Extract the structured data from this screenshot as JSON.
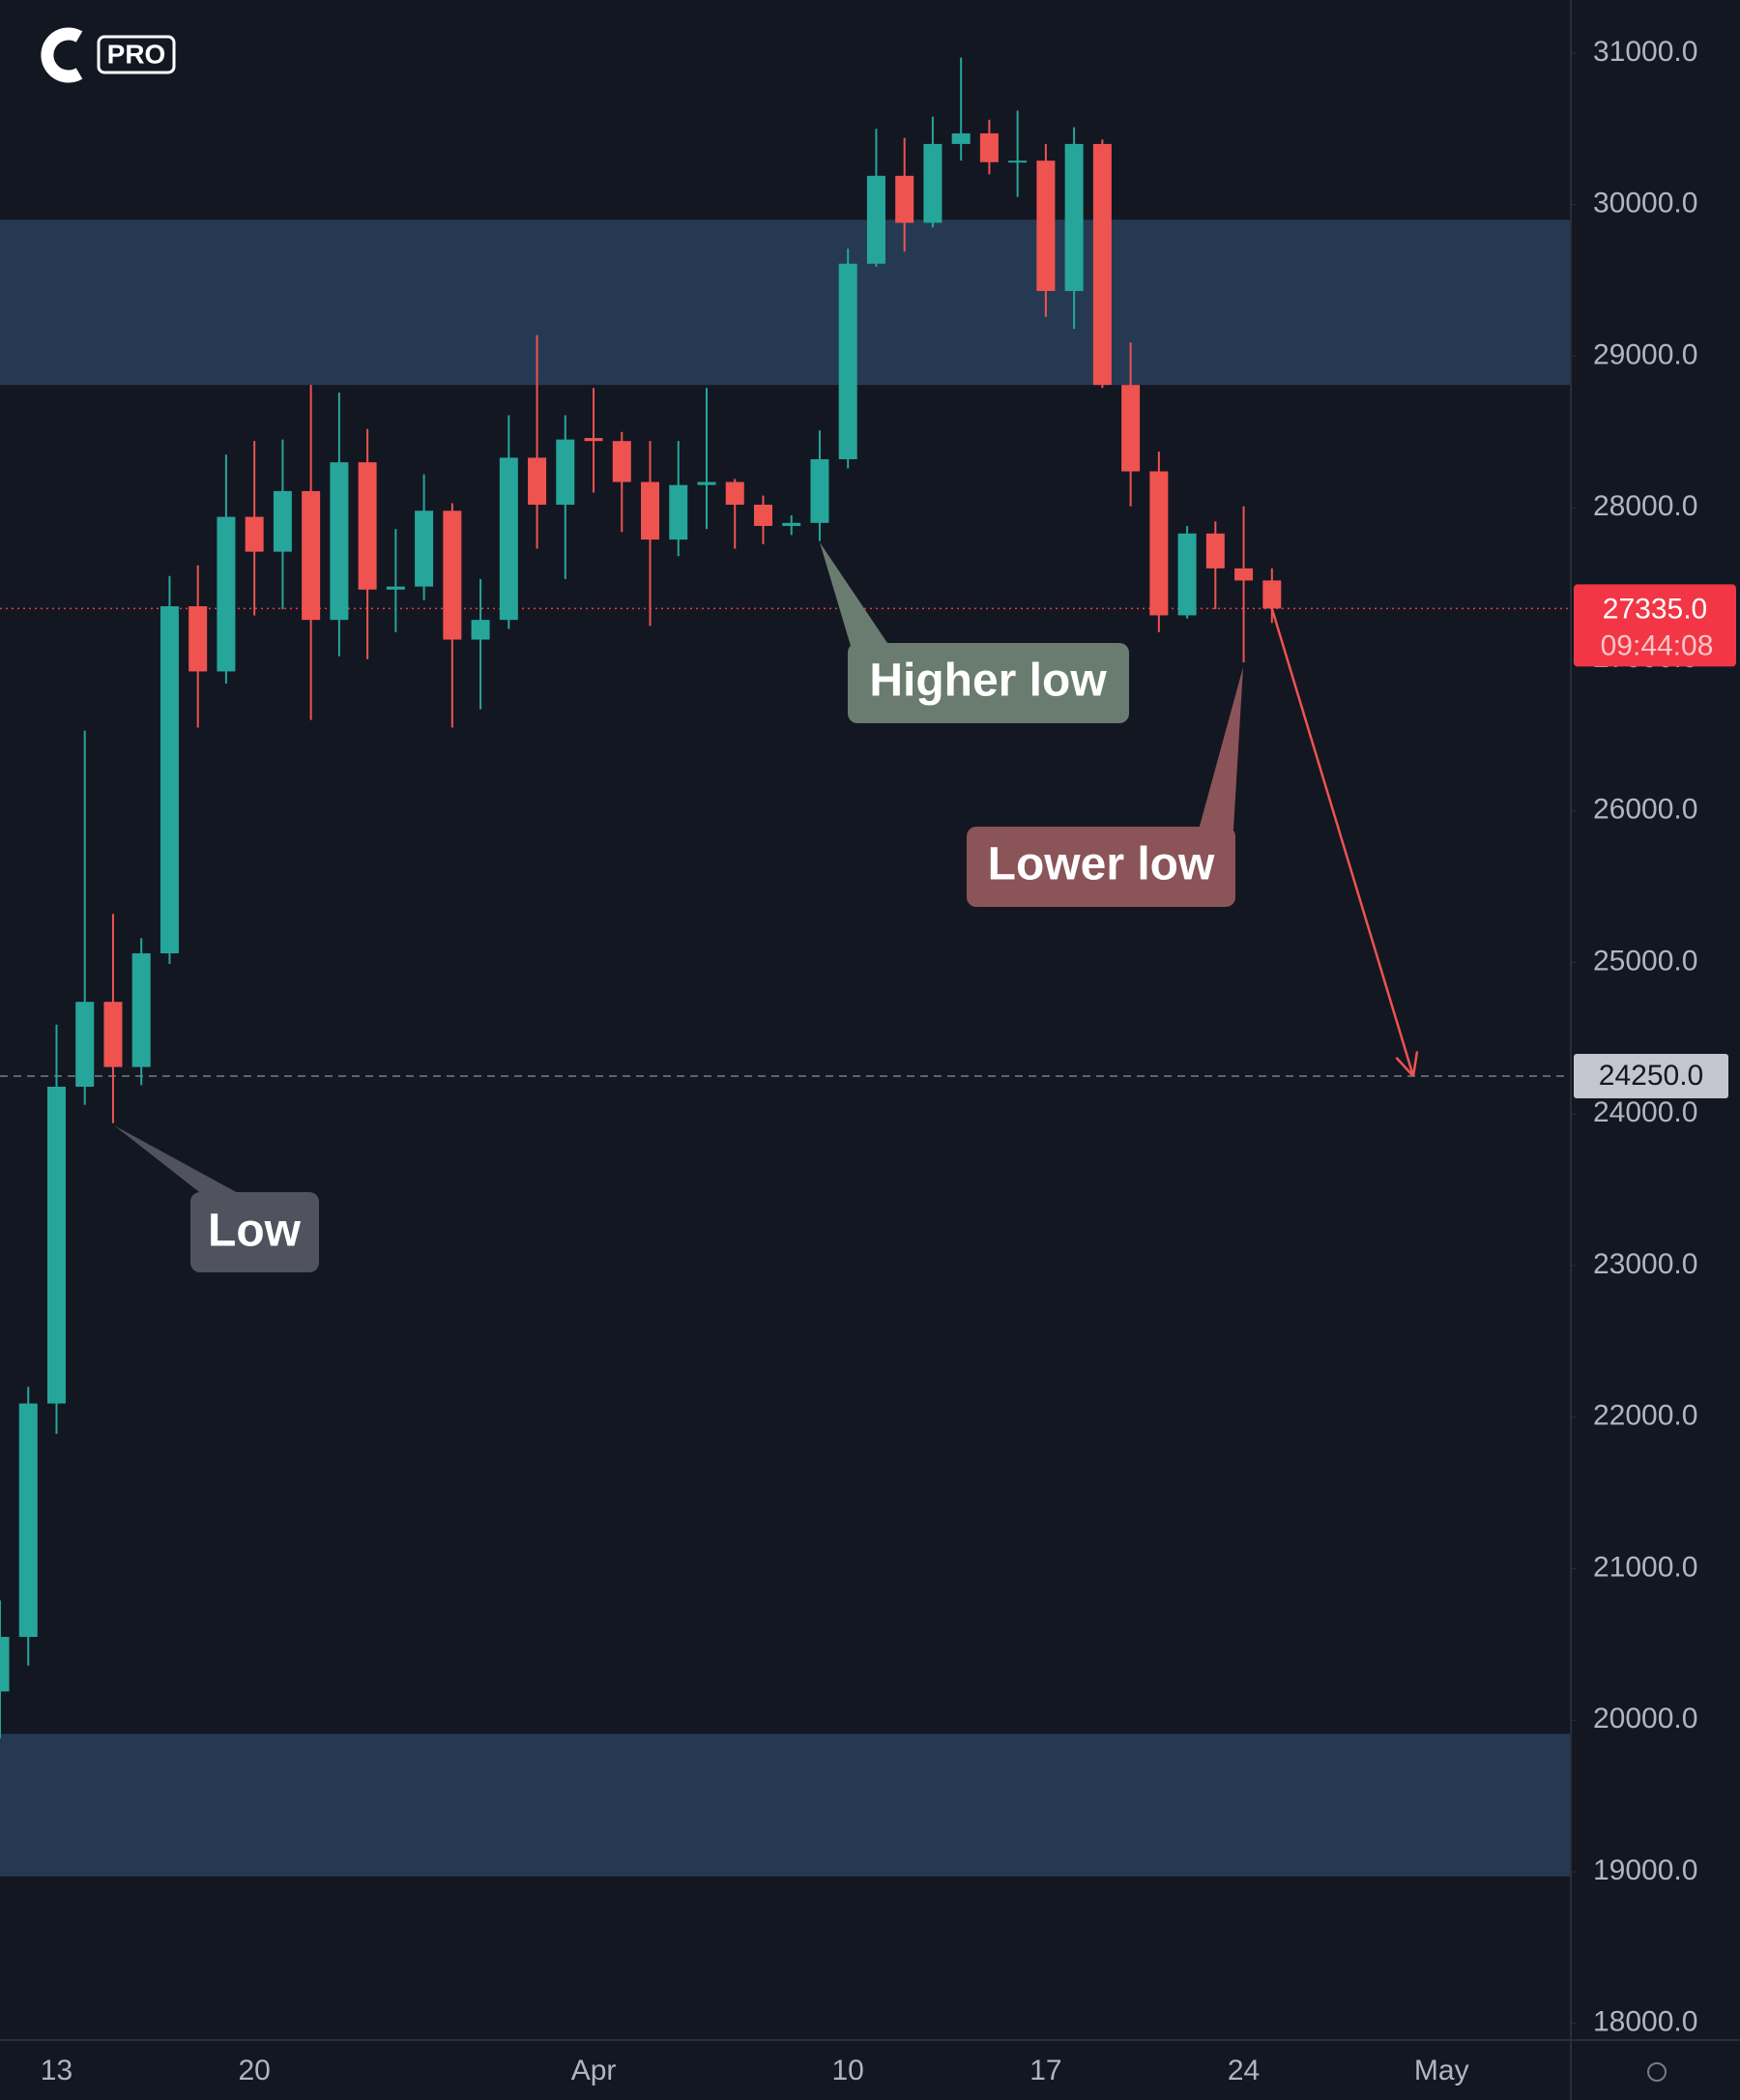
{
  "logo": "PRO",
  "chart_data": {
    "type": "candlestick",
    "categories": [
      null,
      null,
      "13",
      null,
      null,
      null,
      null,
      null,
      null,
      "20",
      null,
      null,
      null,
      null,
      null,
      null,
      null,
      null,
      null,
      null,
      null,
      "Apr",
      null,
      null,
      null,
      null,
      null,
      null,
      null,
      null,
      "10",
      null,
      null,
      null,
      null,
      null,
      null,
      "17",
      null,
      null,
      null,
      null,
      null,
      null,
      "24",
      null,
      null,
      null,
      null,
      null,
      null,
      "May"
    ],
    "open": [
      20190,
      20550,
      22090,
      24180,
      24740,
      24310,
      25060,
      27350,
      26920,
      27940,
      27710,
      28110,
      27260,
      28300,
      27460,
      27480,
      27980,
      27130,
      27260,
      28330,
      28020,
      28460,
      28440,
      28170,
      27790,
      28150,
      28170,
      28020,
      27880,
      27900,
      28320,
      29610,
      30190,
      29880,
      30400,
      30470,
      30280,
      30290,
      29430,
      30400,
      28810,
      28240,
      27290,
      27830,
      27600,
      27520,
      null,
      null,
      null,
      null,
      null,
      null
    ],
    "high": [
      20790,
      22200,
      24590,
      26530,
      25320,
      25160,
      27550,
      27620,
      28350,
      28440,
      28450,
      28810,
      28760,
      28520,
      27860,
      28220,
      28030,
      27530,
      28610,
      29140,
      28610,
      28790,
      28500,
      28440,
      28440,
      28790,
      28190,
      28080,
      27950,
      28510,
      29710,
      30500,
      30440,
      30580,
      30970,
      30560,
      30620,
      30400,
      30510,
      30430,
      29090,
      28370,
      27880,
      27910,
      28010,
      27600,
      null,
      null,
      null,
      null,
      null,
      null
    ],
    "low": [
      19880,
      20360,
      21890,
      24060,
      23940,
      24190,
      24990,
      26550,
      26840,
      27290,
      27330,
      26600,
      27020,
      27000,
      27180,
      27390,
      26550,
      26670,
      27200,
      27730,
      27530,
      28100,
      27840,
      27220,
      27680,
      27860,
      27730,
      27760,
      27820,
      27780,
      28260,
      29590,
      29690,
      29850,
      30290,
      30200,
      30050,
      29260,
      29180,
      28790,
      28010,
      27180,
      27270,
      27330,
      26980,
      27240,
      null,
      null,
      null,
      null,
      null,
      null
    ],
    "close": [
      20550,
      22090,
      24180,
      24740,
      24310,
      25060,
      27350,
      26920,
      27940,
      27710,
      28110,
      27260,
      28300,
      27460,
      27480,
      27980,
      27130,
      27260,
      28330,
      28020,
      28450,
      28440,
      28170,
      27790,
      28150,
      28170,
      28020,
      27880,
      27900,
      28320,
      29610,
      30190,
      29880,
      30400,
      30470,
      30280,
      30290,
      29430,
      30400,
      28810,
      28240,
      27290,
      27830,
      27600,
      27520,
      27335,
      null,
      null,
      null,
      null,
      null,
      null
    ],
    "up_color": "#26a69a",
    "down_color": "#ef5350",
    "ylim": [
      17890,
      31350
    ],
    "yticks": [
      {
        "value": 18000,
        "label": "18000.0"
      },
      {
        "value": 19000,
        "label": "19000.0"
      },
      {
        "value": 20000,
        "label": "20000.0"
      },
      {
        "value": 21000,
        "label": "21000.0"
      },
      {
        "value": 22000,
        "label": "22000.0"
      },
      {
        "value": 23000,
        "label": "23000.0"
      },
      {
        "value": 24000,
        "label": "24000.0"
      },
      {
        "value": 25000,
        "label": "25000.0"
      },
      {
        "value": 26000,
        "label": "26000.0"
      },
      {
        "value": 27000,
        "label": "27000.0"
      },
      {
        "value": 28000,
        "label": "28000.0"
      },
      {
        "value": 29000,
        "label": "29000.0"
      },
      {
        "value": 30000,
        "label": "30000.0"
      },
      {
        "value": 31000,
        "label": "31000.0"
      }
    ],
    "zones": [
      {
        "from": 28810,
        "to": 29900,
        "color": "#253a52"
      },
      {
        "from": 18970,
        "to": 19910,
        "color": "#253a52"
      }
    ],
    "last_price": {
      "value": 27335,
      "label": "27335.0",
      "color": "#f23645"
    },
    "countdown": "09:44:08",
    "target_line": {
      "value": 24250,
      "label": "24250.0",
      "color": "#787b86"
    },
    "annotations": [
      "Low",
      "Higher low",
      "Lower low"
    ]
  }
}
